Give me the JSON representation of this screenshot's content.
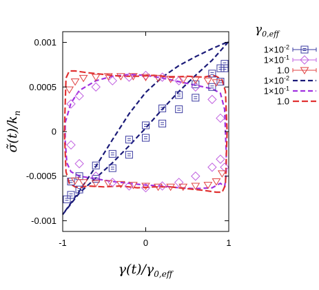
{
  "chart_data": {
    "type": "scatter",
    "title": "",
    "xlabel": "γ(t)/γ0,eff",
    "ylabel": "σ̃(t)/kn",
    "xlim": [
      -1.0,
      1.0
    ],
    "ylim": [
      -0.00112,
      0.00112
    ],
    "x_ticks": [
      -1,
      0,
      1
    ],
    "x_tick_labels": [
      "-1",
      "0",
      "1"
    ],
    "y_ticks": [
      -0.001,
      -0.0005,
      0,
      0.0005,
      0.001
    ],
    "y_tick_labels": [
      "-0.001",
      "-0.0005",
      "0",
      "0.0005",
      "0.001"
    ],
    "grid": false,
    "legend_title": "γ0,eff",
    "legend_placement": "outside-right",
    "marker_series": [
      {
        "name": "1×10⁻²",
        "label_base": "1×10",
        "label_exp": "-2",
        "marker": "square",
        "color": "#3a3aa0",
        "x": [
          -0.95,
          -0.9,
          -0.8,
          -0.6,
          -0.4,
          -0.2,
          0.0,
          0.2,
          0.4,
          0.6,
          0.8,
          0.9,
          0.95,
          0.95,
          0.9,
          0.8,
          0.6,
          0.4,
          0.2,
          0.0,
          -0.2,
          -0.4,
          -0.6,
          -0.8,
          -0.9
        ],
        "y": [
          -0.00076,
          -0.00071,
          -0.00065,
          -0.00053,
          -0.00041,
          -0.00026,
          -7e-05,
          9e-05,
          0.00025,
          0.00038,
          0.0005,
          0.00056,
          0.00071,
          0.00076,
          0.00071,
          0.00065,
          0.00053,
          0.00041,
          0.00026,
          7e-05,
          -9e-05,
          -0.00025,
          -0.00038,
          -0.0005,
          -0.00056
        ]
      },
      {
        "name": "1×10⁻¹",
        "label_base": "1×10",
        "label_exp": "-1",
        "marker": "diamond",
        "color": "#c060e0",
        "x": [
          -0.9,
          -0.8,
          -0.6,
          -0.4,
          -0.2,
          0.0,
          0.2,
          0.4,
          0.6,
          0.8,
          0.9,
          0.95,
          0.9,
          0.8,
          0.6,
          0.4,
          0.2,
          0.0,
          -0.2,
          -0.4,
          -0.6,
          -0.8,
          -0.9
        ],
        "y": [
          0.00031,
          0.0004,
          0.0005,
          0.00057,
          0.00061,
          0.00063,
          0.00061,
          0.00057,
          0.0005,
          0.00036,
          0.00015,
          -0.0004,
          -0.00031,
          -0.0004,
          -0.0005,
          -0.00057,
          -0.00061,
          -0.00063,
          -0.00061,
          -0.00057,
          -0.0005,
          -0.00036,
          -0.00015
        ]
      },
      {
        "name": "1.0",
        "label_base": "1.0",
        "label_exp": "",
        "marker": "triangle-down",
        "color": "#e04040",
        "x": [
          -0.92,
          -0.85,
          -0.75,
          -0.6,
          -0.45,
          -0.3,
          -0.15,
          0.0,
          0.15,
          0.3,
          0.45,
          0.6,
          0.75,
          0.85,
          0.92,
          0.85,
          0.75,
          0.6,
          0.45,
          0.3,
          0.15,
          0.0,
          -0.15,
          -0.3,
          -0.45,
          -0.6,
          -0.75,
          -0.85
        ],
        "y": [
          0.00047,
          0.00056,
          0.0006,
          0.00061,
          0.00062,
          0.00062,
          0.00062,
          0.00061,
          0.0006,
          0.00059,
          0.00058,
          0.00058,
          0.00057,
          0.00055,
          -0.00047,
          -0.00056,
          -0.0006,
          -0.00061,
          -0.00062,
          -0.00062,
          -0.00062,
          -0.00061,
          -0.0006,
          -0.00059,
          -0.00058,
          -0.00058,
          -0.00057,
          -0.00055
        ]
      }
    ],
    "line_series": [
      {
        "name": "1×10⁻²",
        "label_base": "1×10",
        "label_exp": "-2",
        "color": "#1a1a78",
        "dash": "7,4",
        "x": [
          -1.0,
          -0.8,
          -0.6,
          -0.4,
          -0.2,
          0.0,
          0.2,
          0.4,
          0.6,
          0.8,
          1.0,
          0.8,
          0.6,
          0.4,
          0.2,
          0.0,
          -0.2,
          -0.4,
          -0.6,
          -0.8,
          -1.0
        ],
        "y": [
          -0.00093,
          -0.00069,
          -0.00052,
          -0.00035,
          -0.00016,
          4e-05,
          0.00025,
          0.00045,
          0.00063,
          0.0008,
          0.00101,
          0.00093,
          0.00084,
          0.00074,
          0.00061,
          0.00044,
          0.0002,
          -9e-05,
          -0.00039,
          -0.00067,
          -0.00093
        ]
      },
      {
        "name": "1×10⁻¹",
        "label_base": "1×10",
        "label_exp": "-1",
        "color": "#a030e0",
        "dash": "7,4",
        "x": [
          -0.97,
          -0.9,
          -0.8,
          -0.6,
          -0.4,
          -0.2,
          0.0,
          0.2,
          0.4,
          0.6,
          0.8,
          0.9,
          0.95,
          0.97,
          0.97,
          0.95,
          0.9,
          0.8,
          0.6,
          0.4,
          0.2,
          0.0,
          -0.2,
          -0.4,
          -0.6,
          -0.8,
          -0.9,
          -0.95,
          -0.97,
          -0.97
        ],
        "y": [
          0.0001,
          0.00032,
          0.00046,
          0.00057,
          0.00062,
          0.00064,
          0.00063,
          0.0006,
          0.00056,
          0.00052,
          0.00048,
          0.00043,
          0.00025,
          -0.00024,
          -0.00048,
          -0.00062,
          -0.00058,
          -0.00063,
          -0.00064,
          -0.00063,
          -0.00061,
          -0.0006,
          -0.00058,
          -0.00056,
          -0.00053,
          -0.0005,
          -0.00045,
          -0.00035,
          -0.0001,
          0.0001
        ]
      },
      {
        "name": "1.0",
        "label_base": "1.0",
        "label_exp": "",
        "color": "#e03030",
        "dash": "9,4",
        "x": [
          -0.98,
          -0.96,
          -0.92,
          -0.85,
          -0.7,
          -0.5,
          -0.3,
          -0.1,
          0.1,
          0.3,
          0.5,
          0.7,
          0.8,
          0.85,
          0.92,
          0.96,
          0.98,
          0.96,
          0.92,
          0.85,
          0.7,
          0.5,
          0.3,
          0.1,
          -0.1,
          -0.3,
          -0.5,
          -0.7,
          -0.8,
          -0.85,
          -0.92,
          -0.96,
          -0.98
        ],
        "y": [
          0.0,
          0.0006,
          0.00068,
          0.00068,
          0.00066,
          0.00064,
          0.00062,
          0.00062,
          0.00063,
          0.00061,
          0.00062,
          0.00061,
          0.00063,
          0.00062,
          0.00058,
          0.00045,
          0.0,
          -0.0006,
          -0.00068,
          -0.00068,
          -0.00066,
          -0.00064,
          -0.00062,
          -0.00062,
          -0.00063,
          -0.00061,
          -0.00062,
          -0.00061,
          -0.00063,
          -0.00062,
          -0.00058,
          -0.00045,
          0.0
        ]
      }
    ]
  }
}
